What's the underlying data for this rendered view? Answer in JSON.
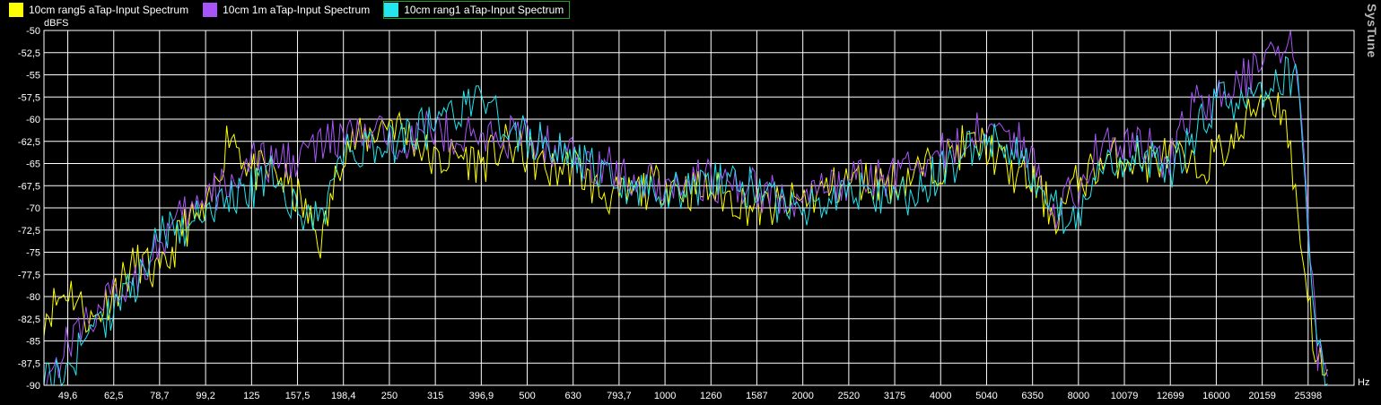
{
  "app": {
    "brand": "SysTune"
  },
  "chart_data": {
    "type": "line",
    "ylabel": "dBFS",
    "xlabel": "Hz",
    "ylim": [
      -90,
      -50
    ],
    "yticks": [
      "-50",
      "-52,5",
      "-55",
      "-57,5",
      "-60",
      "-62,5",
      "-65",
      "-67,5",
      "-70",
      "-72,5",
      "-75",
      "-77,5",
      "-80",
      "-82,5",
      "-85",
      "-87,5",
      "-90"
    ],
    "xscale": "log",
    "xlim": [
      44,
      32000
    ],
    "xticks": [
      "49,6",
      "62,5",
      "78,7",
      "99,2",
      "125",
      "157,5",
      "198,4",
      "250",
      "315",
      "396,9",
      "500",
      "630",
      "793,7",
      "1000",
      "1260",
      "1587",
      "2000",
      "2520",
      "3175",
      "4000",
      "5040",
      "6350",
      "8000",
      "10079",
      "12699",
      "16000",
      "20159",
      "25398"
    ],
    "grid": true,
    "legend_position": "top-left",
    "x": [
      44,
      50,
      56,
      63,
      71,
      79,
      89,
      100,
      112,
      125,
      141,
      158,
      178,
      198,
      224,
      250,
      281,
      315,
      354,
      397,
      446,
      500,
      561,
      630,
      707,
      794,
      891,
      1000,
      1122,
      1260,
      1414,
      1587,
      1782,
      2000,
      2245,
      2520,
      2828,
      3175,
      3564,
      4000,
      4490,
      5040,
      5657,
      6350,
      7127,
      8000,
      8980,
      10079,
      11314,
      12699,
      14254,
      16000,
      17959,
      20159,
      22627,
      24000,
      25398,
      26500,
      28000
    ],
    "series": [
      {
        "name": "10cm rang5 aTap-Input Spectrum",
        "color": "#ffff00",
        "values": [
          -82,
          -79,
          -83,
          -79,
          -76,
          -78,
          -72,
          -71,
          -61,
          -66,
          -66,
          -69,
          -74,
          -63,
          -62,
          -60,
          -62,
          -65,
          -64,
          -65,
          -63,
          -64,
          -66,
          -65,
          -68,
          -69,
          -68,
          -67,
          -68,
          -68,
          -69,
          -70,
          -70,
          -69,
          -68,
          -67,
          -67,
          -67,
          -66,
          -65,
          -63,
          -63,
          -66,
          -67,
          -71,
          -67,
          -65,
          -64,
          -65,
          -64,
          -66,
          -64,
          -62,
          -57,
          -59,
          -70,
          -80,
          -87,
          -90
        ]
      },
      {
        "name": "10cm 1m aTap-Input Spectrum",
        "color": "#a855f7",
        "values": [
          -90,
          -85,
          -82,
          -80,
          -77,
          -74,
          -71,
          -69,
          -67,
          -65,
          -65,
          -64,
          -63,
          -62,
          -62,
          -62,
          -62,
          -61,
          -62,
          -62,
          -62,
          -62,
          -63,
          -64,
          -65,
          -66,
          -67,
          -67,
          -67,
          -67,
          -68,
          -68,
          -69,
          -69,
          -68,
          -67,
          -67,
          -66,
          -65,
          -64,
          -63,
          -60,
          -62,
          -64,
          -70,
          -68,
          -62,
          -63,
          -63,
          -65,
          -58,
          -58,
          -55,
          -55,
          -51,
          -53,
          -70,
          -86,
          -90
        ]
      },
      {
        "name": "10cm rang1 aTap-Input Spectrum",
        "color": "#22e5ee",
        "values": [
          -90,
          -88,
          -84,
          -81,
          -78,
          -73,
          -72,
          -70,
          -69,
          -68,
          -66,
          -71,
          -71,
          -64,
          -63,
          -63,
          -61,
          -61,
          -59,
          -58,
          -61,
          -62,
          -63,
          -64,
          -66,
          -68,
          -68,
          -68,
          -68,
          -67,
          -67,
          -68,
          -70,
          -70,
          -69,
          -68,
          -68,
          -69,
          -68,
          -66,
          -64,
          -62,
          -63,
          -66,
          -70,
          -72,
          -66,
          -64,
          -64,
          -66,
          -62,
          -58,
          -58,
          -57,
          -55,
          -55,
          -72,
          -86,
          -90
        ]
      }
    ]
  }
}
